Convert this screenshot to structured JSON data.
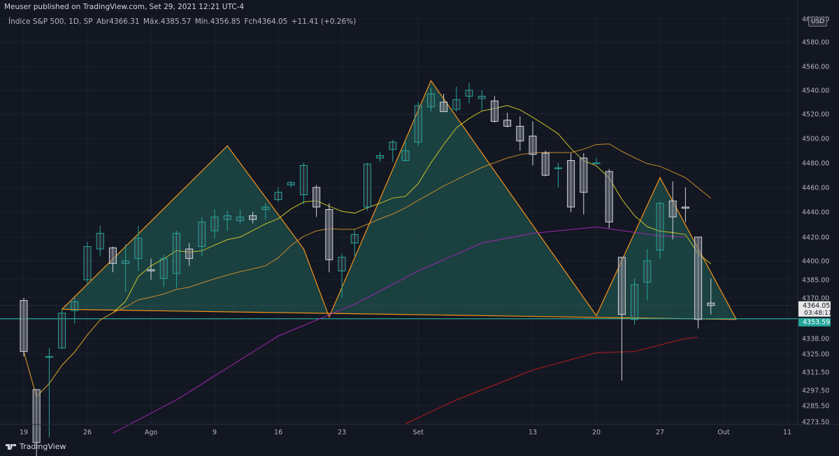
{
  "credit": "Meuser published on TradingView.com, Set 29, 2021 12:21 UTC-4",
  "legend": {
    "symbol": "Índice S&P 500, 1D, SP",
    "open": "Abr4366.31",
    "high": "Máx.4385.57",
    "low": "Mín.4356.85",
    "close": "Fch4364.05",
    "change": "+11.41 (+0.26%)"
  },
  "currency_badge": "USD",
  "brand": "TradingView",
  "colors": {
    "background": "#131722",
    "candle_body": "#787b86",
    "candle_up_border": "#26a69a",
    "pattern_line": "#f7931a",
    "pattern_fill": "#1f4f4b",
    "neckline": "#26a69a",
    "ma_yellow": "#c9c22a",
    "ma_orange": "#c68a2b",
    "ma_purple": "#9c27b0",
    "ma_red": "#b71c1c",
    "price_tag_current": "#e9e9ea",
    "price_tag_neck": "#26a69a"
  },
  "chart_data": {
    "type": "candlestick",
    "ylim": [
      4265,
      4600
    ],
    "y_ticks": [
      "4600.00",
      "4580.00",
      "4560.00",
      "4540.00",
      "4520.00",
      "4500.00",
      "4480.00",
      "4460.00",
      "4440.00",
      "4420.00",
      "4400.00",
      "4385.00",
      "4370.00",
      "4338.00",
      "4325.00",
      "4311.50",
      "4297.50",
      "4285.50",
      "4273.50"
    ],
    "x_ticks": [
      {
        "label": "19",
        "i": 0
      },
      {
        "label": "26",
        "i": 5
      },
      {
        "label": "Ago",
        "i": 10
      },
      {
        "label": "9",
        "i": 15
      },
      {
        "label": "16",
        "i": 20
      },
      {
        "label": "23",
        "i": 25
      },
      {
        "label": "Set",
        "i": 31
      },
      {
        "label": "13",
        "i": 40
      },
      {
        "label": "20",
        "i": 45
      },
      {
        "label": "27",
        "i": 50
      },
      {
        "label": "Out",
        "i": 55
      },
      {
        "label": "11",
        "i": 60
      }
    ],
    "candles": [
      {
        "o": 4368,
        "h": 4370,
        "l": 4323,
        "c": 4327
      },
      {
        "o": 4298,
        "h": 4298,
        "l": 4233,
        "c": 4258
      },
      {
        "o": 4323,
        "h": 4330,
        "l": 4262,
        "c": 4323
      },
      {
        "o": 4330,
        "h": 4361,
        "l": 4329,
        "c": 4358
      },
      {
        "o": 4360,
        "h": 4370,
        "l": 4350,
        "c": 4367
      },
      {
        "o": 4385,
        "h": 4416,
        "l": 4381,
        "c": 4412
      },
      {
        "o": 4410,
        "h": 4429,
        "l": 4404,
        "c": 4423
      },
      {
        "o": 4411,
        "h": 4412,
        "l": 4391,
        "c": 4398
      },
      {
        "o": 4398,
        "h": 4414,
        "l": 4375,
        "c": 4400
      },
      {
        "o": 4402,
        "h": 4429,
        "l": 4392,
        "c": 4419
      },
      {
        "o": 4393,
        "h": 4402,
        "l": 4385,
        "c": 4392
      },
      {
        "o": 4386,
        "h": 4405,
        "l": 4379,
        "c": 4402
      },
      {
        "o": 4390,
        "h": 4425,
        "l": 4378,
        "c": 4423
      },
      {
        "o": 4410,
        "h": 4415,
        "l": 4396,
        "c": 4402
      },
      {
        "o": 4412,
        "h": 4436,
        "l": 4404,
        "c": 4432
      },
      {
        "o": 4425,
        "h": 4442,
        "l": 4419,
        "c": 4436
      },
      {
        "o": 4434,
        "h": 4441,
        "l": 4425,
        "c": 4437
      },
      {
        "o": 4433,
        "h": 4442,
        "l": 4431,
        "c": 4436
      },
      {
        "o": 4437,
        "h": 4440,
        "l": 4431,
        "c": 4434
      },
      {
        "o": 4442,
        "h": 4447,
        "l": 4434,
        "c": 4444
      },
      {
        "o": 4450,
        "h": 4460,
        "l": 4448,
        "c": 4456
      },
      {
        "o": 4462,
        "h": 4465,
        "l": 4460,
        "c": 4464
      },
      {
        "o": 4454,
        "h": 4480,
        "l": 4446,
        "c": 4478
      },
      {
        "o": 4460,
        "h": 4462,
        "l": 4436,
        "c": 4444
      },
      {
        "o": 4442,
        "h": 4447,
        "l": 4391,
        "c": 4401
      },
      {
        "o": 4392,
        "h": 4406,
        "l": 4370,
        "c": 4403
      },
      {
        "o": 4415,
        "h": 4426,
        "l": 4404,
        "c": 4422
      },
      {
        "o": 4444,
        "h": 4480,
        "l": 4441,
        "c": 4479
      },
      {
        "o": 4484,
        "h": 4489,
        "l": 4481,
        "c": 4486
      },
      {
        "o": 4491,
        "h": 4499,
        "l": 4481,
        "c": 4497
      },
      {
        "o": 4482,
        "h": 4498,
        "l": 4481,
        "c": 4490
      },
      {
        "o": 4497,
        "h": 4530,
        "l": 4494,
        "c": 4527
      },
      {
        "o": 4526,
        "h": 4542,
        "l": 4522,
        "c": 4537
      },
      {
        "o": 4530,
        "h": 4537,
        "l": 4522,
        "c": 4522
      },
      {
        "o": 4524,
        "h": 4543,
        "l": 4522,
        "c": 4532
      },
      {
        "o": 4535,
        "h": 4546,
        "l": 4529,
        "c": 4540
      },
      {
        "o": 4533,
        "h": 4540,
        "l": 4523,
        "c": 4535
      },
      {
        "o": 4531,
        "h": 4535,
        "l": 4513,
        "c": 4514
      },
      {
        "o": 4515,
        "h": 4521,
        "l": 4509,
        "c": 4510
      },
      {
        "o": 4510,
        "h": 4518,
        "l": 4490,
        "c": 4498
      },
      {
        "o": 4502,
        "h": 4514,
        "l": 4478,
        "c": 4487
      },
      {
        "o": 4488,
        "h": 4490,
        "l": 4469,
        "c": 4470
      },
      {
        "o": 4476,
        "h": 4480,
        "l": 4460,
        "c": 4476
      },
      {
        "o": 4482,
        "h": 4488,
        "l": 4440,
        "c": 4444
      },
      {
        "o": 4484,
        "h": 4488,
        "l": 4438,
        "c": 4456
      },
      {
        "o": 4480,
        "h": 4484,
        "l": 4479,
        "c": 4480
      },
      {
        "o": 4473,
        "h": 4475,
        "l": 4427,
        "c": 4432
      },
      {
        "o": 4403,
        "h": 4403,
        "l": 4305,
        "c": 4357
      },
      {
        "o": 4353,
        "h": 4386,
        "l": 4349,
        "c": 4381
      },
      {
        "o": 4383,
        "h": 4410,
        "l": 4368,
        "c": 4400
      },
      {
        "o": 4409,
        "h": 4448,
        "l": 4402,
        "c": 4447
      },
      {
        "o": 4449,
        "h": 4465,
        "l": 4418,
        "c": 4436
      },
      {
        "o": 4444,
        "h": 4460,
        "l": 4432,
        "c": 4443
      },
      {
        "o": 4420,
        "h": 4420,
        "l": 4346,
        "c": 4353
      },
      {
        "o": 4366,
        "h": 4386,
        "l": 4357,
        "c": 4364
      }
    ],
    "neckline": 4353.59,
    "current_price": 4364.05,
    "countdown": "03:48:11",
    "price_labels": {
      "current": "4364.05",
      "neck": "4353.59"
    },
    "pattern_points": [
      [
        3,
        4361
      ],
      [
        16,
        4494
      ],
      [
        22,
        4410
      ],
      [
        24,
        4355
      ],
      [
        32,
        4548
      ],
      [
        45,
        4356
      ],
      [
        50,
        4468
      ],
      [
        56,
        4353
      ]
    ]
  }
}
